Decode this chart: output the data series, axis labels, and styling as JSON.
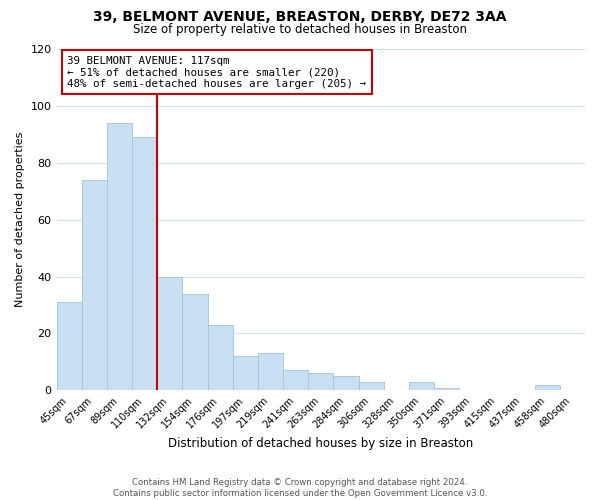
{
  "title": "39, BELMONT AVENUE, BREASTON, DERBY, DE72 3AA",
  "subtitle": "Size of property relative to detached houses in Breaston",
  "xlabel": "Distribution of detached houses by size in Breaston",
  "ylabel": "Number of detached properties",
  "bar_labels": [
    "45sqm",
    "67sqm",
    "89sqm",
    "110sqm",
    "132sqm",
    "154sqm",
    "176sqm",
    "197sqm",
    "219sqm",
    "241sqm",
    "263sqm",
    "284sqm",
    "306sqm",
    "328sqm",
    "350sqm",
    "371sqm",
    "393sqm",
    "415sqm",
    "437sqm",
    "458sqm",
    "480sqm"
  ],
  "bar_values": [
    31,
    74,
    94,
    89,
    40,
    34,
    23,
    12,
    13,
    7,
    6,
    5,
    3,
    0,
    3,
    1,
    0,
    0,
    0,
    2,
    0
  ],
  "bar_color": "#c9dff2",
  "bar_edge_color": "#a0c4e0",
  "property_line_color": "#cc0000",
  "property_line_index": 4,
  "annotation_text": "39 BELMONT AVENUE: 117sqm\n← 51% of detached houses are smaller (220)\n48% of semi-detached houses are larger (205) →",
  "annotation_box_color": "#ffffff",
  "annotation_box_edge": "#cc0000",
  "ylim": [
    0,
    120
  ],
  "yticks": [
    0,
    20,
    40,
    60,
    80,
    100,
    120
  ],
  "footer_text": "Contains HM Land Registry data © Crown copyright and database right 2024.\nContains public sector information licensed under the Open Government Licence v3.0.",
  "bg_color": "#ffffff",
  "grid_color": "#cfe0f0"
}
